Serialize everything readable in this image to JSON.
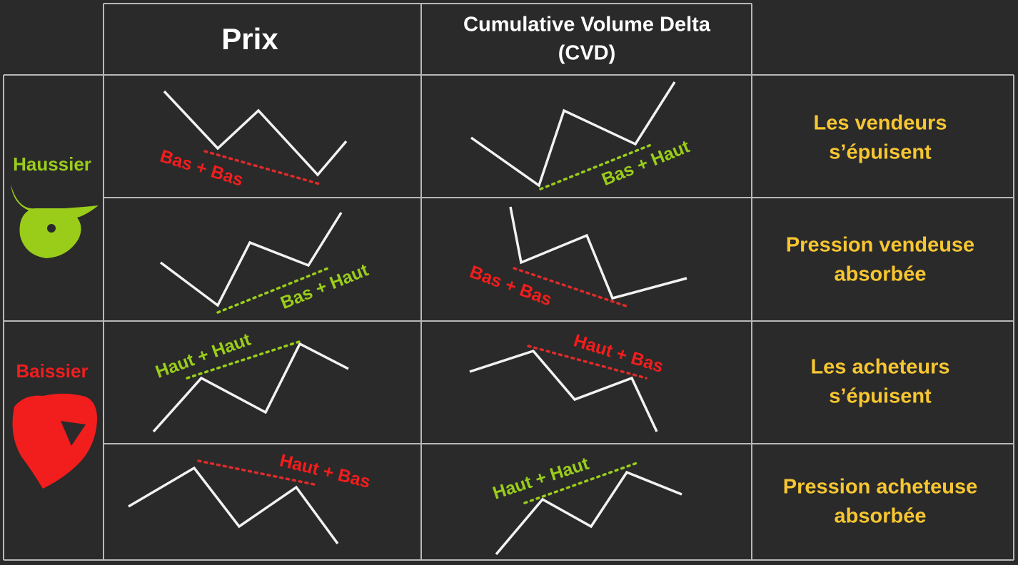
{
  "header": {
    "price": "Prix",
    "cvd": [
      "Cumulative Volume Delta",
      "(CVD)"
    ]
  },
  "groups": [
    {
      "label": "Haussier",
      "rows": [
        {
          "price_label": "Bas + Bas",
          "cvd_label": "Bas + Haut",
          "meaning": [
            "Les vendeurs",
            "s’épuisent"
          ]
        },
        {
          "price_label": "Bas + Haut",
          "cvd_label": "Bas + Bas",
          "meaning": [
            "Pression vendeuse",
            "absorbée"
          ]
        }
      ]
    },
    {
      "label": "Baissier",
      "rows": [
        {
          "price_label": "Haut + Haut",
          "cvd_label": "Haut + Bas",
          "meaning": [
            "Les acheteurs",
            "s’épuisent"
          ]
        },
        {
          "price_label": "Haut + Bas",
          "cvd_label": "Haut + Haut",
          "meaning": [
            "Pression acheteuse",
            "absorbée"
          ]
        }
      ]
    }
  ]
}
